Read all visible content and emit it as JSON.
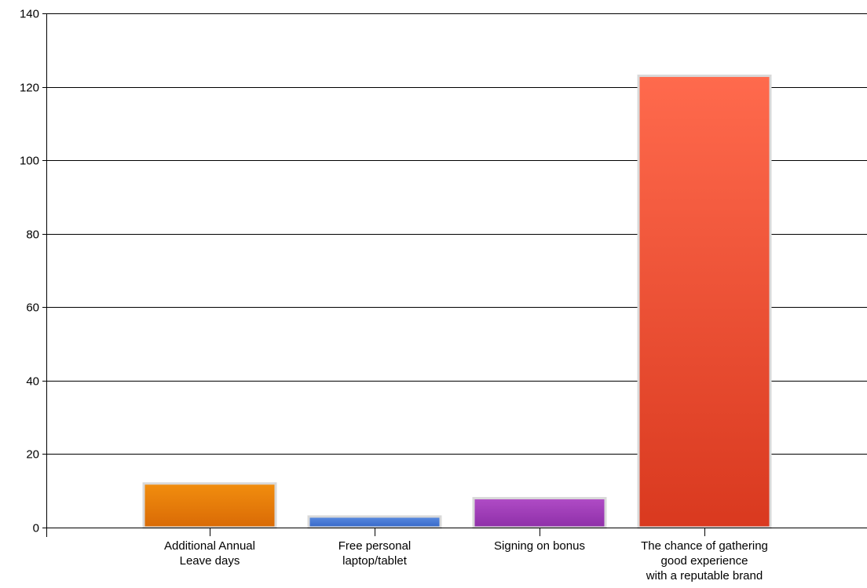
{
  "chart_data": {
    "type": "bar",
    "categories": [
      [
        "Additional Annual",
        "Leave days"
      ],
      [
        "Free personal",
        "laptop/tablet"
      ],
      [
        "Signing on bonus"
      ],
      [
        "The chance of gathering",
        "good experience",
        "with a reputable brand"
      ]
    ],
    "values": [
      12,
      3,
      8,
      123
    ],
    "ylim": [
      0,
      140
    ],
    "yticks": [
      "0",
      "20",
      "40",
      "60",
      "80",
      "100",
      "120",
      "140"
    ],
    "grid": true,
    "colors": [
      {
        "top": "#f28e0e",
        "bottom": "#d96a06"
      },
      {
        "top": "#5b8be0",
        "bottom": "#3567c8"
      },
      {
        "top": "#b04cc6",
        "bottom": "#8e2fa8"
      },
      {
        "top": "#ff6a4d",
        "bottom": "#d9391f"
      }
    ],
    "bar_outline_color": "#d9d9d9"
  }
}
